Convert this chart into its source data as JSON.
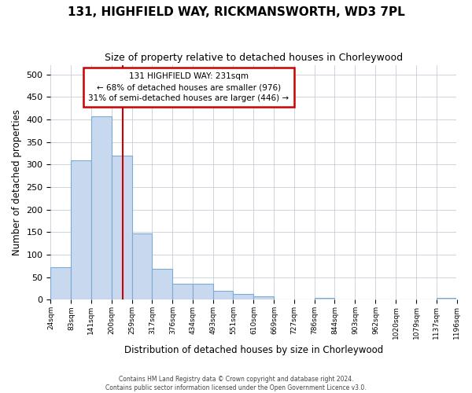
{
  "title": "131, HIGHFIELD WAY, RICKMANSWORTH, WD3 7PL",
  "subtitle": "Size of property relative to detached houses in Chorleywood",
  "xlabel": "Distribution of detached houses by size in Chorleywood",
  "ylabel": "Number of detached properties",
  "footer_line1": "Contains HM Land Registry data © Crown copyright and database right 2024.",
  "footer_line2": "Contains public sector information licensed under the Open Government Licence v3.0.",
  "annotation_line1": "131 HIGHFIELD WAY: 231sqm",
  "annotation_line2": "← 68% of detached houses are smaller (976)",
  "annotation_line3": "31% of semi-detached houses are larger (446) →",
  "bar_edges": [
    24,
    83,
    141,
    200,
    259,
    317,
    376,
    434,
    493,
    551,
    610,
    669,
    727,
    786,
    844,
    903,
    962,
    1020,
    1079,
    1137,
    1196
  ],
  "bar_heights": [
    72,
    310,
    407,
    320,
    147,
    68,
    35,
    35,
    20,
    13,
    7,
    0,
    0,
    5,
    0,
    0,
    0,
    0,
    0,
    4
  ],
  "bar_color": "#c8d9ef",
  "bar_edge_color": "#7aabd4",
  "property_line_x": 231,
  "property_line_color": "#cc0000",
  "ylim": [
    0,
    520
  ],
  "yticks": [
    0,
    50,
    100,
    150,
    200,
    250,
    300,
    350,
    400,
    450,
    500
  ],
  "grid_color": "#c8ccd8",
  "background_color": "#ffffff",
  "ann_box_facecolor": "#ffffff",
  "ann_box_edgecolor": "#cc0000"
}
